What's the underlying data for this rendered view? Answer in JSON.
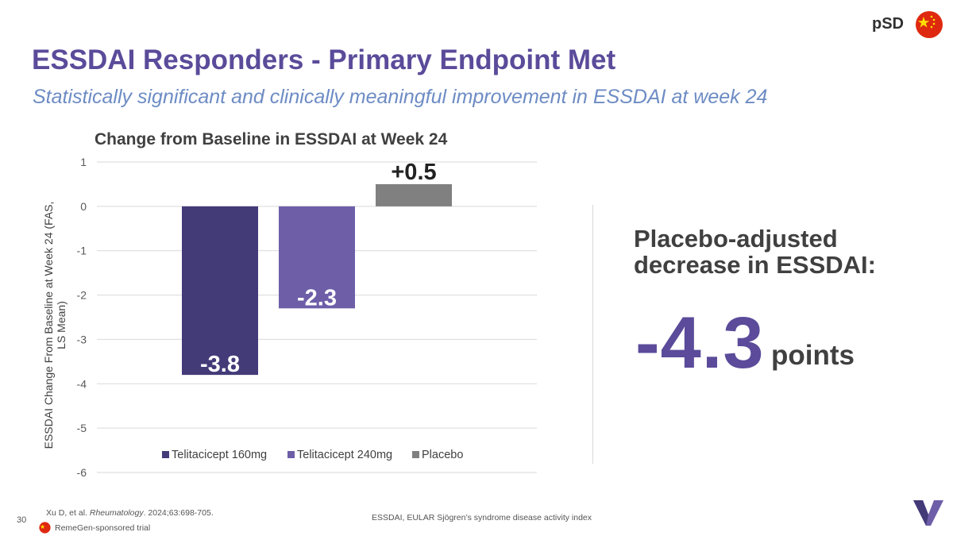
{
  "header": {
    "title": "ESSDAI Responders - Primary Endpoint Met",
    "subtitle": "Statistically significant and clinically meaningful improvement in ESSDAI at week 24",
    "tag": "pSD"
  },
  "chart_data": {
    "type": "bar",
    "title": "Change from Baseline in ESSDAI at Week 24",
    "ylabel": "ESSDAI Change From Baseline at Week 24 (FAS, LS Mean)",
    "xlabel": "",
    "categories": [
      "Telitacicept 160mg",
      "Telitacicept 240mg",
      "Placebo"
    ],
    "values": [
      -3.8,
      -2.3,
      0.5
    ],
    "data_labels": [
      "-3.8",
      "-2.3",
      "+0.5"
    ],
    "colors": [
      "#433a78",
      "#6e5ea8",
      "#808080"
    ],
    "ylim": [
      -6,
      1
    ],
    "yticks": [
      1,
      0,
      -1,
      -2,
      -3,
      -4,
      -5,
      -6
    ],
    "grid": true,
    "legend": "bottom"
  },
  "callout": {
    "label": "Placebo-adjusted decrease in ESSDAI:",
    "value": "-4.3",
    "unit": "points"
  },
  "footer": {
    "page_number": "30",
    "citation_authors": "Xu D, et al. ",
    "citation_journal": "Rheumatology",
    "citation_rest": ". 2024;63:698-705.",
    "sponsor": "RemeGen-sponsored trial",
    "footnote": "ESSDAI, EULAR Sjögren’s syndrome disease activity index"
  },
  "colors": {
    "accent": "#5b4b9a",
    "subtitle": "#6d8cc4",
    "flag_red": "#de2910",
    "flag_yellow": "#ffde00"
  }
}
